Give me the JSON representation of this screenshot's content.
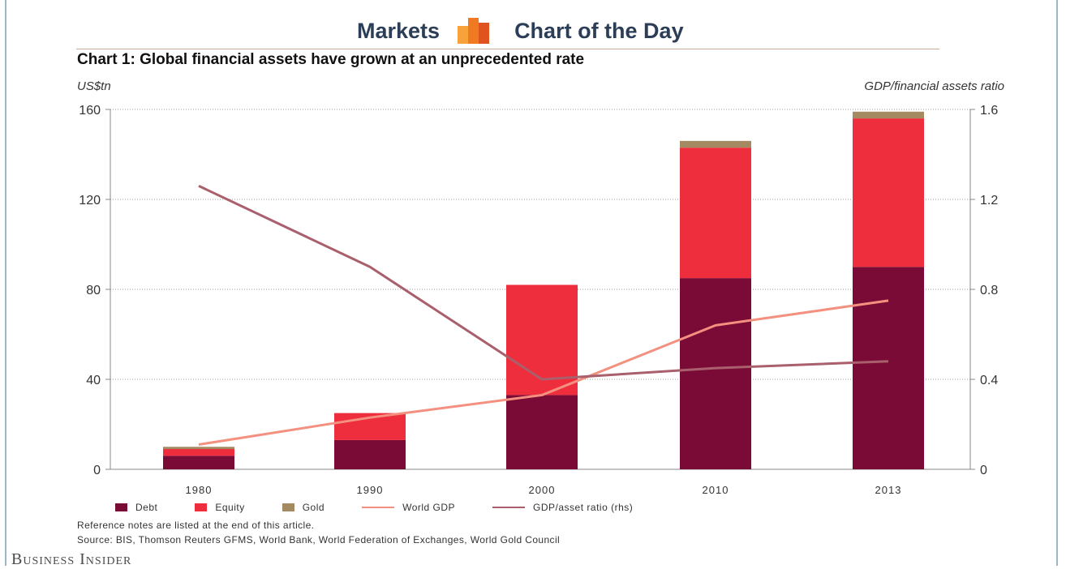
{
  "header": {
    "left_text": "Markets",
    "right_text": "Chart of the Day",
    "logo_icon": "bar-chart-logo-icon"
  },
  "chart_title": "Chart 1: Global financial assets have grown at an unprecedented rate",
  "left_axis_unit": "US$tn",
  "right_axis_unit": "GDP/financial assets ratio",
  "chart_data": {
    "type": "bar",
    "stacked": true,
    "categories": [
      "1980",
      "1990",
      "2000",
      "2010",
      "2013"
    ],
    "series": [
      {
        "name": "Debt",
        "kind": "bar",
        "axis": "left",
        "color": "#7a0a36",
        "values": [
          6,
          13,
          33,
          85,
          90
        ]
      },
      {
        "name": "Equity",
        "kind": "bar",
        "axis": "left",
        "color": "#ee2e3c",
        "values": [
          3,
          12,
          49,
          58,
          66
        ]
      },
      {
        "name": "Gold",
        "kind": "bar",
        "axis": "left",
        "color": "#a48a62",
        "values": [
          1,
          0,
          0,
          3,
          3
        ]
      },
      {
        "name": "World GDP",
        "kind": "line",
        "axis": "left",
        "color": "#f4907f",
        "values": [
          11,
          23,
          33,
          64,
          75
        ]
      },
      {
        "name": "GDP/asset ratio (rhs)",
        "kind": "line",
        "axis": "right",
        "color": "#a95f6c",
        "values": [
          1.26,
          0.9,
          0.4,
          0.45,
          0.48
        ]
      }
    ],
    "ylim": [
      0,
      160
    ],
    "yticks": [
      "0",
      "40",
      "80",
      "120",
      "160"
    ],
    "y2lim": [
      0,
      1.6
    ],
    "y2ticks": [
      "0",
      "0.4",
      "0.8",
      "1.2",
      "1.6"
    ],
    "grid": "horizontal dotted",
    "legend_position": "bottom"
  },
  "notes": {
    "reference": "Reference notes are listed at the end of this article.",
    "source": "Source: BIS, Thomson Reuters GFMS, World Bank, World Federation of Exchanges, World Gold Council"
  },
  "brand": "Business Insider"
}
